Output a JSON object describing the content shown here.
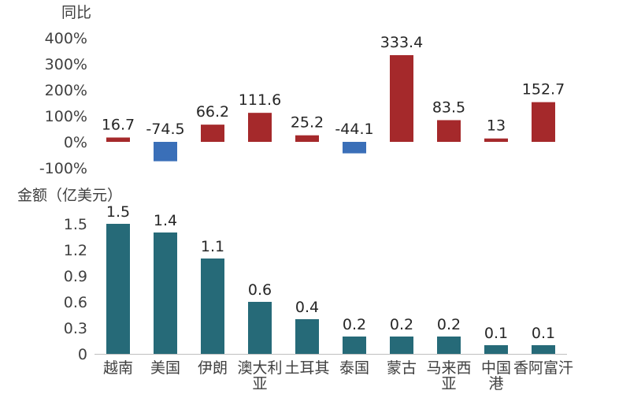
{
  "chart_data": [
    {
      "type": "bar",
      "title": "同比",
      "categories": [
        "越南",
        "美国",
        "伊朗",
        "澳大利亚",
        "土耳其",
        "泰国",
        "蒙古",
        "马来西亚",
        "中国香港",
        "阿富汗"
      ],
      "values": [
        16.7,
        -74.5,
        66.2,
        111.6,
        25.2,
        -44.1,
        333.4,
        83.5,
        13,
        152.7
      ],
      "data_labels": [
        "16.7",
        "-74.5",
        "66.2",
        "111.6",
        "25.2",
        "-44.1",
        "333.4",
        "83.5",
        "13",
        "152.7"
      ],
      "yticks": [
        "400%",
        "300%",
        "200%",
        "100%",
        "0%",
        "-100%"
      ],
      "ylim": [
        -100,
        400
      ],
      "grid": false,
      "colors": {
        "positive": "#a5292b",
        "negative": "#3a6fb8"
      }
    },
    {
      "type": "bar",
      "title": "金额（亿美元）",
      "categories": [
        "越南",
        "美国",
        "伊朗",
        "澳大利亚",
        "土耳其",
        "泰国",
        "蒙古",
        "马来西亚",
        "中国香港",
        "阿富汗"
      ],
      "category_lines": [
        [
          "越南"
        ],
        [
          "美国"
        ],
        [
          "伊朗"
        ],
        [
          "澳大利",
          "亚"
        ],
        [
          "土耳其"
        ],
        [
          "泰国"
        ],
        [
          "蒙古"
        ],
        [
          "马来西",
          "亚"
        ],
        [
          "中国",
          "港"
        ],
        [
          "香阿富汗"
        ]
      ],
      "values": [
        1.5,
        1.4,
        1.1,
        0.6,
        0.4,
        0.2,
        0.2,
        0.2,
        0.1,
        0.1
      ],
      "data_labels": [
        "1.5",
        "1.4",
        "1.1",
        "0.6",
        "0.4",
        "0.2",
        "0.2",
        "0.2",
        "0.1",
        "0.1"
      ],
      "yticks": [
        "1.5",
        "1.2",
        "0.9",
        "0.6",
        "0.3",
        "0"
      ],
      "ylim": [
        0,
        1.5
      ],
      "grid": false,
      "colors": {
        "bar": "#266a78"
      }
    }
  ]
}
